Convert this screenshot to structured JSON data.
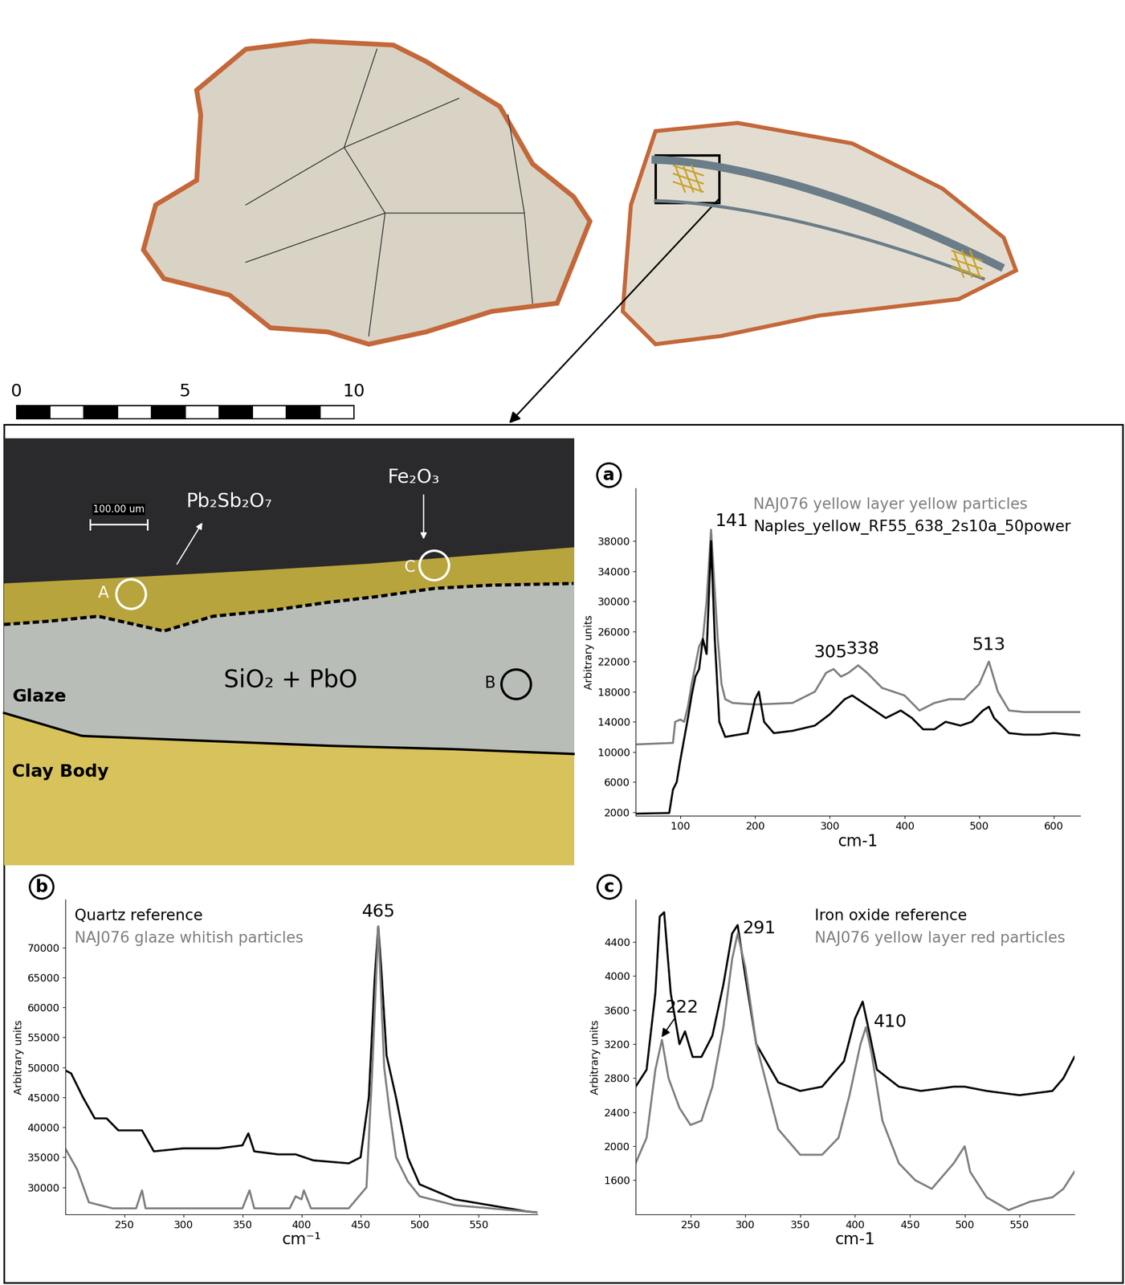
{
  "chart_data": [
    {
      "type": "line",
      "label": "a",
      "x_label": "cm-1",
      "y_label": "Arbitrary units",
      "xlim": [
        40,
        635
      ],
      "ylim": [
        1500,
        45000
      ],
      "xticks": [
        100,
        200,
        300,
        400,
        500,
        600
      ],
      "yticks": [
        2000,
        6000,
        10000,
        14000,
        18000,
        22000,
        26000,
        30000,
        34000,
        38000
      ],
      "legend": "upper right",
      "series": [
        {
          "name": "NAJ076 yellow layer yellow particles",
          "color": "#7f7f7f",
          "x": [
            40,
            90,
            93,
            100,
            105,
            110,
            115,
            120,
            125,
            130,
            135,
            141,
            145,
            150,
            155,
            160,
            170,
            200,
            250,
            280,
            295,
            305,
            315,
            325,
            338,
            350,
            370,
            400,
            420,
            440,
            460,
            480,
            500,
            513,
            525,
            540,
            560,
            600,
            635
          ],
          "values": [
            11000,
            11200,
            14000,
            14300,
            14000,
            16000,
            19000,
            21500,
            24000,
            25000,
            30000,
            39500,
            33000,
            25000,
            19000,
            17000,
            16500,
            16300,
            16500,
            18000,
            20500,
            21000,
            20000,
            20500,
            21500,
            20500,
            18500,
            17500,
            15500,
            16500,
            17000,
            17000,
            19000,
            22000,
            18000,
            15500,
            15300,
            15300,
            15300
          ]
        },
        {
          "name": "Naples_yellow_RF55_638_2s10a_50power",
          "color": "#000000",
          "x": [
            40,
            85,
            90,
            95,
            100,
            110,
            115,
            120,
            125,
            130,
            135,
            141,
            146,
            152,
            160,
            190,
            200,
            205,
            212,
            225,
            250,
            280,
            300,
            320,
            330,
            345,
            360,
            375,
            395,
            410,
            425,
            440,
            455,
            475,
            490,
            505,
            513,
            520,
            540,
            560,
            580,
            600,
            635
          ],
          "values": [
            1800,
            1900,
            5000,
            6000,
            9000,
            14500,
            17500,
            20000,
            21000,
            25000,
            23000,
            38000,
            25000,
            14000,
            12000,
            12500,
            17000,
            18000,
            14000,
            12500,
            12800,
            13500,
            15000,
            17000,
            17500,
            16500,
            15500,
            14500,
            15500,
            14500,
            13000,
            13000,
            14000,
            13500,
            14000,
            15500,
            16000,
            14500,
            12500,
            12300,
            12300,
            12500,
            12200
          ]
        }
      ],
      "annotations": [
        {
          "text": "141",
          "x": 141,
          "y": 39500
        },
        {
          "text": "305",
          "x": 305,
          "y": 21000
        },
        {
          "text": "338",
          "x": 338,
          "y": 21500
        },
        {
          "text": "513",
          "x": 513,
          "y": 22000
        }
      ]
    },
    {
      "type": "line",
      "label": "b",
      "x_label": "cm⁻¹",
      "y_label": "Arbitrary units",
      "xlim": [
        200,
        600
      ],
      "ylim": [
        25500,
        78000
      ],
      "xticks": [
        250,
        300,
        350,
        400,
        450,
        500,
        550
      ],
      "yticks": [
        30000,
        35000,
        40000,
        45000,
        50000,
        55000,
        60000,
        65000,
        70000
      ],
      "legend": "upper left",
      "series": [
        {
          "name": "Quartz reference",
          "color": "#000000",
          "x": [
            200,
            205,
            215,
            225,
            235,
            245,
            255,
            265,
            275,
            300,
            330,
            350,
            355,
            360,
            380,
            395,
            410,
            440,
            450,
            457,
            462,
            465,
            468,
            472,
            480,
            490,
            500,
            530,
            560,
            590,
            600
          ],
          "values": [
            49500,
            49000,
            45000,
            41500,
            41500,
            39500,
            39500,
            39500,
            36000,
            36500,
            36500,
            37000,
            39000,
            36000,
            35500,
            35500,
            34500,
            34000,
            35000,
            45000,
            65000,
            73500,
            65000,
            52000,
            45000,
            35000,
            30500,
            28000,
            27000,
            26000,
            25800
          ]
        },
        {
          "name": "NAJ076 glaze whitish particles",
          "color": "#7f7f7f",
          "x": [
            200,
            210,
            220,
            240,
            260,
            265,
            268,
            300,
            350,
            356,
            360,
            390,
            395,
            400,
            402,
            408,
            440,
            455,
            460,
            465,
            470,
            475,
            480,
            490,
            500,
            530,
            560,
            600
          ],
          "values": [
            36500,
            33000,
            27500,
            26500,
            26500,
            29500,
            26500,
            26500,
            26500,
            29500,
            26500,
            26500,
            28500,
            28000,
            29500,
            26500,
            26500,
            30000,
            50000,
            73500,
            50000,
            42000,
            35000,
            31000,
            28500,
            27000,
            26500,
            25800
          ]
        }
      ],
      "annotations": [
        {
          "text": "465",
          "x": 465,
          "y": 73500
        }
      ]
    },
    {
      "type": "line",
      "label": "c",
      "x_label": "cm-1",
      "y_label": "Arbitrary units",
      "xlim": [
        200,
        600
      ],
      "ylim": [
        1200,
        4900
      ],
      "xticks": [
        250,
        300,
        350,
        400,
        450,
        500,
        550
      ],
      "yticks": [
        1600,
        2000,
        2400,
        2800,
        3200,
        3600,
        4000,
        4400
      ],
      "legend": "upper right",
      "series": [
        {
          "name": "Iron oxide reference",
          "color": "#000000",
          "x": [
            200,
            210,
            218,
            222,
            226,
            232,
            240,
            245,
            252,
            260,
            270,
            280,
            288,
            293,
            300,
            310,
            330,
            350,
            370,
            390,
            400,
            407,
            412,
            420,
            440,
            460,
            490,
            500,
            520,
            550,
            580,
            590,
            600
          ],
          "values": [
            2700,
            2900,
            3800,
            4700,
            4750,
            3800,
            3200,
            3350,
            3050,
            3050,
            3300,
            3900,
            4500,
            4600,
            4000,
            3200,
            2750,
            2650,
            2700,
            3000,
            3500,
            3700,
            3400,
            2900,
            2700,
            2650,
            2700,
            2700,
            2650,
            2600,
            2650,
            2800,
            3050
          ]
        },
        {
          "name": "NAJ076 yellow layer red particles",
          "color": "#7f7f7f",
          "x": [
            200,
            210,
            218,
            224,
            230,
            240,
            250,
            260,
            270,
            280,
            288,
            293,
            300,
            310,
            330,
            350,
            370,
            385,
            395,
            405,
            410,
            415,
            425,
            440,
            455,
            470,
            490,
            500,
            505,
            520,
            540,
            560,
            580,
            590,
            600
          ],
          "values": [
            1800,
            2100,
            2900,
            3250,
            2800,
            2450,
            2250,
            2300,
            2700,
            3400,
            4200,
            4500,
            4100,
            3200,
            2200,
            1900,
            1900,
            2100,
            2600,
            3200,
            3400,
            3100,
            2300,
            1800,
            1600,
            1500,
            1800,
            2000,
            1700,
            1400,
            1250,
            1350,
            1400,
            1500,
            1700
          ]
        }
      ],
      "annotations": [
        {
          "text": "222",
          "x": 222,
          "y": 3250
        },
        {
          "text": "291",
          "x": 291,
          "y": 4500
        },
        {
          "text": "410",
          "x": 410,
          "y": 3400
        }
      ]
    }
  ],
  "photo": {
    "scale_bar": {
      "ticks": [
        0,
        5,
        10
      ]
    }
  },
  "micrograph": {
    "scale": "100.00 um",
    "points": [
      {
        "label": "A",
        "phase": "Pb₂Sb₂O₇"
      },
      {
        "label": "B"
      },
      {
        "label": "C",
        "phase": "Fe₂O₃"
      }
    ],
    "glaze": "SiO₂ + PbO",
    "layer_labels": [
      "Glaze",
      "Clay Body"
    ]
  }
}
